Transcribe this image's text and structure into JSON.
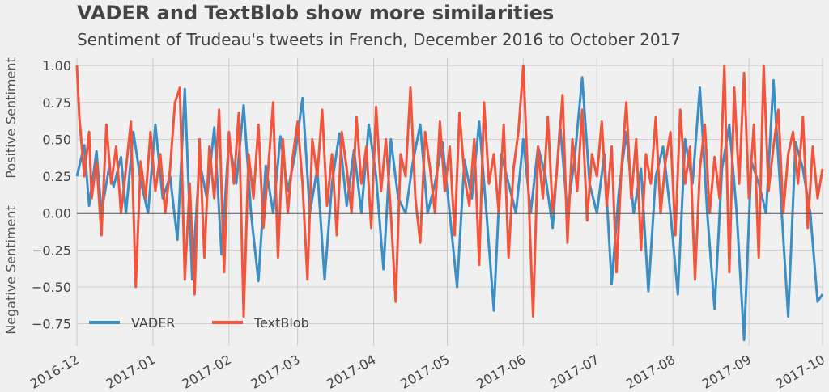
{
  "chart_data": {
    "type": "line",
    "title": "VADER and TextBlob show more similarities",
    "subtitle": "Sentiment of Trudeau's tweets in French, December 2016 to October 2017",
    "ylabel_positive": "Positive Sentiment",
    "ylabel_negative": "Negative Sentiment",
    "xlim": [
      "2016-12-01",
      "2017-10-01"
    ],
    "ylim": [
      -0.9,
      1.05
    ],
    "yticks": [
      1.0,
      0.75,
      0.5,
      0.25,
      0.0,
      -0.25,
      -0.5,
      -0.75
    ],
    "ytick_labels": [
      "1.00",
      "0.75",
      "0.50",
      "0.25",
      "0.00",
      "−0.25",
      "−0.50",
      "−0.75"
    ],
    "xticks": [
      "2016-12-01",
      "2017-01-01",
      "2017-02-01",
      "2017-03-01",
      "2017-04-01",
      "2017-05-01",
      "2017-06-01",
      "2017-07-01",
      "2017-08-01",
      "2017-09-01",
      "2017-10-01"
    ],
    "xtick_labels": [
      "2016-12",
      "2017-01",
      "2017-02",
      "2017-03",
      "2017-04",
      "2017-05",
      "2017-06",
      "2017-07",
      "2017-08",
      "2017-09",
      "2017-10"
    ],
    "grid": true,
    "legend": "lower-left",
    "baseline": 0,
    "colors": {
      "background": "#f0f0f0",
      "vader": "#3b8fc4",
      "textblob": "#f2543c",
      "baseline": "#555555"
    },
    "series": [
      {
        "name": "VADER",
        "color": "#3b8fc4",
        "x": [
          "2016-12-01",
          "2016-12-04",
          "2016-12-06",
          "2016-12-09",
          "2016-12-11",
          "2016-12-14",
          "2016-12-16",
          "2016-12-19",
          "2016-12-21",
          "2016-12-24",
          "2016-12-27",
          "2016-12-30",
          "2017-01-02",
          "2017-01-05",
          "2017-01-08",
          "2017-01-11",
          "2017-01-14",
          "2017-01-17",
          "2017-01-20",
          "2017-01-23",
          "2017-01-26",
          "2017-01-29",
          "2017-02-01",
          "2017-02-04",
          "2017-02-07",
          "2017-02-10",
          "2017-02-13",
          "2017-02-16",
          "2017-02-19",
          "2017-02-22",
          "2017-02-25",
          "2017-02-28",
          "2017-03-03",
          "2017-03-06",
          "2017-03-09",
          "2017-03-12",
          "2017-03-15",
          "2017-03-18",
          "2017-03-21",
          "2017-03-24",
          "2017-03-27",
          "2017-03-30",
          "2017-04-02",
          "2017-04-05",
          "2017-04-08",
          "2017-04-11",
          "2017-04-14",
          "2017-04-17",
          "2017-04-20",
          "2017-04-23",
          "2017-04-26",
          "2017-04-29",
          "2017-05-02",
          "2017-05-05",
          "2017-05-08",
          "2017-05-11",
          "2017-05-14",
          "2017-05-17",
          "2017-05-20",
          "2017-05-23",
          "2017-05-26",
          "2017-05-29",
          "2017-06-01",
          "2017-06-04",
          "2017-06-07",
          "2017-06-10",
          "2017-06-13",
          "2017-06-16",
          "2017-06-19",
          "2017-06-22",
          "2017-06-25",
          "2017-06-28",
          "2017-07-01",
          "2017-07-04",
          "2017-07-07",
          "2017-07-10",
          "2017-07-13",
          "2017-07-16",
          "2017-07-19",
          "2017-07-22",
          "2017-07-25",
          "2017-07-28",
          "2017-07-31",
          "2017-08-03",
          "2017-08-06",
          "2017-08-09",
          "2017-08-12",
          "2017-08-15",
          "2017-08-18",
          "2017-08-21",
          "2017-08-24",
          "2017-08-27",
          "2017-08-30",
          "2017-09-02",
          "2017-09-05",
          "2017-09-08",
          "2017-09-11",
          "2017-09-14",
          "2017-09-17",
          "2017-09-20",
          "2017-09-23",
          "2017-09-26",
          "2017-09-29",
          "2017-10-01"
        ],
        "y": [
          0.25,
          0.46,
          0.05,
          0.42,
          0.0,
          0.3,
          0.18,
          0.38,
          0.0,
          0.55,
          0.22,
          0.0,
          0.6,
          0.1,
          0.25,
          -0.18,
          0.84,
          -0.45,
          0.35,
          0.1,
          0.58,
          -0.28,
          0.5,
          0.2,
          0.73,
          0.0,
          -0.46,
          0.32,
          0.0,
          0.52,
          0.15,
          0.4,
          0.78,
          0.0,
          0.3,
          -0.45,
          0.2,
          0.54,
          0.05,
          0.43,
          0.0,
          0.6,
          0.25,
          -0.38,
          0.5,
          0.1,
          0.0,
          0.35,
          0.6,
          0.0,
          0.2,
          0.48,
          0.0,
          -0.5,
          0.36,
          0.1,
          0.62,
          0.0,
          -0.66,
          0.4,
          0.2,
          0.0,
          0.5,
          0.0,
          0.45,
          0.25,
          -0.1,
          0.6,
          0.0,
          0.38,
          0.92,
          0.2,
          0.0,
          0.4,
          -0.48,
          0.15,
          0.55,
          0.0,
          0.3,
          -0.53,
          0.25,
          0.45,
          0.0,
          -0.55,
          0.5,
          0.2,
          0.85,
          0.0,
          -0.65,
          0.3,
          0.6,
          0.0,
          -0.86,
          0.35,
          0.2,
          0.0,
          0.9,
          0.1,
          -0.7,
          0.48,
          0.3,
          0.0,
          -0.6,
          -0.55
        ]
      },
      {
        "name": "TextBlob",
        "color": "#f2543c",
        "x": [
          "2016-12-01",
          "2016-12-02",
          "2016-12-04",
          "2016-12-06",
          "2016-12-07",
          "2016-12-09",
          "2016-12-11",
          "2016-12-13",
          "2016-12-15",
          "2016-12-17",
          "2016-12-19",
          "2016-12-21",
          "2016-12-23",
          "2016-12-25",
          "2016-12-27",
          "2016-12-29",
          "2016-12-31",
          "2017-01-02",
          "2017-01-04",
          "2017-01-06",
          "2017-01-08",
          "2017-01-10",
          "2017-01-12",
          "2017-01-14",
          "2017-01-16",
          "2017-01-18",
          "2017-01-20",
          "2017-01-22",
          "2017-01-24",
          "2017-01-26",
          "2017-01-28",
          "2017-01-30",
          "2017-02-01",
          "2017-02-03",
          "2017-02-05",
          "2017-02-07",
          "2017-02-09",
          "2017-02-11",
          "2017-02-13",
          "2017-02-15",
          "2017-02-17",
          "2017-02-19",
          "2017-02-21",
          "2017-02-23",
          "2017-02-25",
          "2017-02-27",
          "2017-03-01",
          "2017-03-03",
          "2017-03-05",
          "2017-03-07",
          "2017-03-09",
          "2017-03-11",
          "2017-03-13",
          "2017-03-15",
          "2017-03-17",
          "2017-03-19",
          "2017-03-21",
          "2017-03-23",
          "2017-03-25",
          "2017-03-27",
          "2017-03-29",
          "2017-03-31",
          "2017-04-02",
          "2017-04-04",
          "2017-04-06",
          "2017-04-08",
          "2017-04-10",
          "2017-04-12",
          "2017-04-14",
          "2017-04-16",
          "2017-04-18",
          "2017-04-20",
          "2017-04-22",
          "2017-04-24",
          "2017-04-26",
          "2017-04-28",
          "2017-04-30",
          "2017-05-02",
          "2017-05-04",
          "2017-05-06",
          "2017-05-08",
          "2017-05-10",
          "2017-05-12",
          "2017-05-14",
          "2017-05-16",
          "2017-05-18",
          "2017-05-20",
          "2017-05-22",
          "2017-05-24",
          "2017-05-26",
          "2017-05-28",
          "2017-05-30",
          "2017-06-01",
          "2017-06-03",
          "2017-06-05",
          "2017-06-07",
          "2017-06-09",
          "2017-06-11",
          "2017-06-13",
          "2017-06-15",
          "2017-06-17",
          "2017-06-19",
          "2017-06-21",
          "2017-06-23",
          "2017-06-25",
          "2017-06-27",
          "2017-06-29",
          "2017-07-01",
          "2017-07-03",
          "2017-07-05",
          "2017-07-07",
          "2017-07-09",
          "2017-07-11",
          "2017-07-13",
          "2017-07-15",
          "2017-07-17",
          "2017-07-19",
          "2017-07-21",
          "2017-07-23",
          "2017-07-25",
          "2017-07-27",
          "2017-07-29",
          "2017-07-31",
          "2017-08-02",
          "2017-08-04",
          "2017-08-06",
          "2017-08-08",
          "2017-08-10",
          "2017-08-12",
          "2017-08-14",
          "2017-08-16",
          "2017-08-18",
          "2017-08-20",
          "2017-08-22",
          "2017-08-24",
          "2017-08-26",
          "2017-08-28",
          "2017-08-30",
          "2017-09-01",
          "2017-09-03",
          "2017-09-05",
          "2017-09-07",
          "2017-09-09",
          "2017-09-11",
          "2017-09-13",
          "2017-09-15",
          "2017-09-17",
          "2017-09-19",
          "2017-09-21",
          "2017-09-23",
          "2017-09-25",
          "2017-09-27",
          "2017-09-29",
          "2017-10-01"
        ],
        "y": [
          1.0,
          0.65,
          0.25,
          0.55,
          0.1,
          0.35,
          -0.15,
          0.6,
          0.2,
          0.45,
          0.0,
          0.3,
          0.62,
          -0.5,
          0.35,
          0.1,
          0.55,
          0.15,
          0.4,
          0.0,
          0.3,
          0.75,
          0.85,
          -0.45,
          0.2,
          -0.55,
          0.5,
          -0.3,
          0.45,
          0.1,
          0.7,
          -0.4,
          0.55,
          0.2,
          0.68,
          -0.7,
          0.4,
          0.1,
          0.6,
          -0.1,
          0.3,
          0.75,
          -0.3,
          0.5,
          0.0,
          0.38,
          0.62,
          0.2,
          -0.45,
          0.5,
          0.25,
          0.7,
          0.05,
          0.4,
          -0.15,
          0.55,
          0.3,
          0.0,
          0.65,
          0.2,
          0.45,
          -0.1,
          0.72,
          0.15,
          0.5,
          0.0,
          -0.6,
          0.4,
          0.25,
          0.85,
          0.1,
          -0.2,
          0.55,
          0.3,
          0.0,
          0.62,
          0.15,
          0.45,
          -0.15,
          0.68,
          0.25,
          0.05,
          0.5,
          -0.35,
          0.75,
          0.2,
          0.4,
          0.0,
          0.6,
          -0.3,
          0.3,
          0.55,
          1.0,
          0.2,
          -0.7,
          0.45,
          0.1,
          0.65,
          0.0,
          0.35,
          0.8,
          -0.2,
          0.5,
          0.15,
          0.7,
          -0.05,
          0.4,
          0.25,
          0.62,
          0.05,
          0.45,
          -0.4,
          0.3,
          0.75,
          0.1,
          0.5,
          -0.25,
          0.4,
          0.2,
          0.65,
          0.0,
          0.35,
          0.55,
          -0.15,
          0.7,
          0.2,
          0.45,
          -0.45,
          0.3,
          0.6,
          0.0,
          0.38,
          0.1,
          1.0,
          -0.4,
          0.85,
          0.2,
          0.95,
          0.1,
          0.6,
          -0.3,
          1.0,
          0.15,
          0.45,
          0.7,
          0.0,
          0.4,
          0.55,
          0.2,
          0.65,
          -0.1,
          0.45,
          0.1,
          0.3
        ]
      }
    ]
  }
}
